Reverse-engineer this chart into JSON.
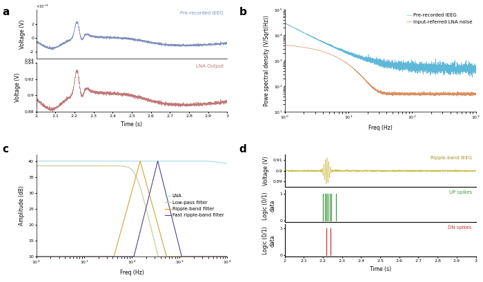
{
  "panel_a": {
    "ieeg_color": "#8090bb",
    "lna_color": "#c07878",
    "ieeg_ylabel": "Voltage (V)",
    "lna_ylabel": "Voltage (V)",
    "xlabel": "Time (s)",
    "ieeg_label": "Pre-recorded iEEG",
    "lna_label": "LNA Output"
  },
  "panel_b": {
    "ieeg_color": "#60b8d8",
    "noise_color": "#d89060",
    "xlabel": "Freq (Hz)",
    "ylabel": "Powe spectral density (V/Sqrt(Hz))",
    "ieeg_label": "Pre-recorded iEEG",
    "noise_label": "Input-referred LNA noise"
  },
  "panel_c": {
    "lna_color": "#a8d8e8",
    "lpf_color": "#c8c890",
    "ripple_color": "#d4a030",
    "fast_ripple_color": "#504090",
    "xlabel": "Freq (Hz)",
    "ylabel": "Amplitude (dB)",
    "labels": [
      "LNA",
      "Low-pass filter",
      "Ripple-band filter",
      "Fast ripple-band filter"
    ]
  },
  "panel_d": {
    "ripple_color": "#c8b840",
    "up_color": "#409840",
    "dn_color": "#c83030",
    "ripple_ylabel": "Voltage (V)",
    "up_ylabel": "Logic (0/1)\ndata",
    "dn_ylabel": "Logic (0/1)\ndata",
    "xlabel": "Time (s)",
    "ripple_label": "Ripple-band iEEG",
    "up_label": "UP spikes",
    "dn_label": "DN spikes"
  },
  "background_color": "#ffffff",
  "panel_label_fontsize": 11,
  "axis_fontsize": 5.5,
  "legend_fontsize": 5,
  "tick_fontsize": 4.5
}
